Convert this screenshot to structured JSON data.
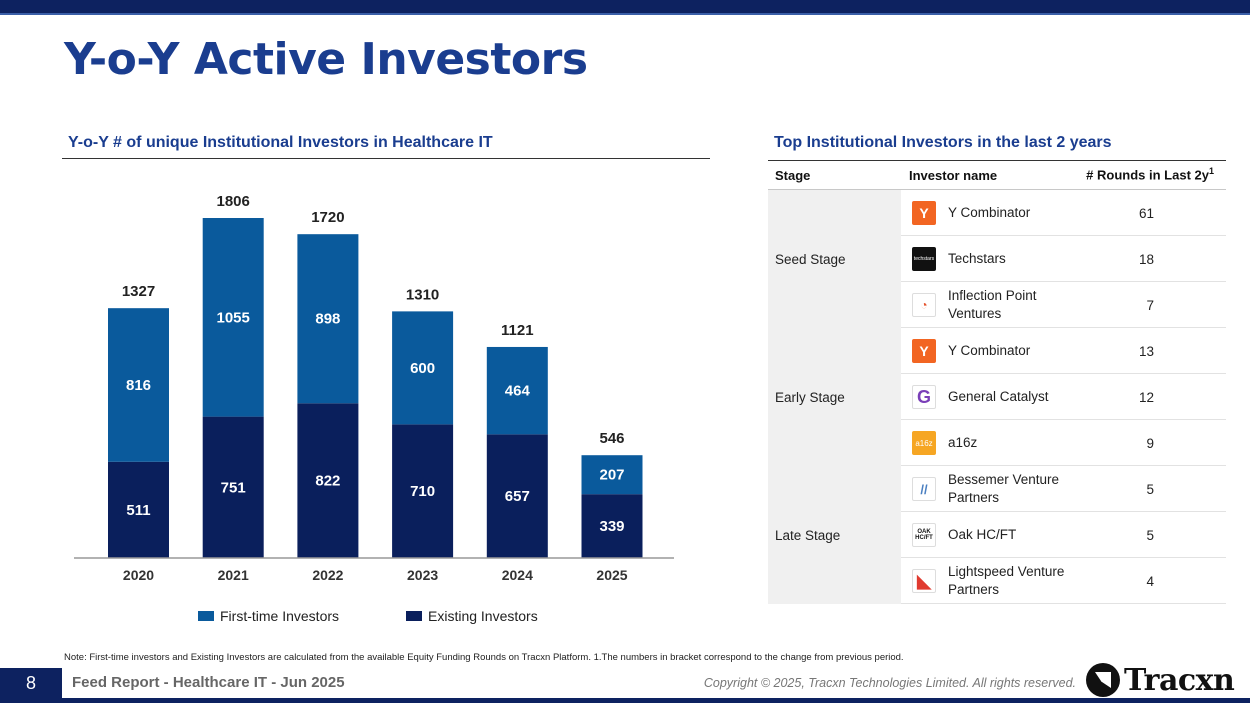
{
  "page": {
    "title": "Y-o-Y Active Investors",
    "left_section_title": "Y-o-Y  # of unique Institutional Investors in Healthcare IT",
    "right_section_title": "Top Institutional Investors in the last 2 years",
    "note": "Note: First-time investors and Existing Investors are calculated from the available Equity Funding Rounds on Tracxn Platform. 1.The numbers in bracket correspond to the change from previous period.",
    "page_number": "8",
    "report_name": "Feed Report - Healthcare IT - Jun 2025",
    "copyright": "Copyright © 2025, Tracxn Technologies Limited. All rights reserved.",
    "brand": "Tracxn"
  },
  "colors": {
    "first_time": "#0a5a9c",
    "existing": "#0a1f5c",
    "title": "#1a3d8f"
  },
  "chart_data": {
    "type": "bar",
    "stacked": true,
    "title": "Y-o-Y  # of unique Institutional Investors in Healthcare IT",
    "categories": [
      "2020",
      "2021",
      "2022",
      "2023",
      "2024",
      "2025"
    ],
    "series": [
      {
        "name": "Existing Investors",
        "values": [
          511,
          751,
          822,
          710,
          657,
          339
        ]
      },
      {
        "name": "First-time Investors",
        "values": [
          816,
          1055,
          898,
          600,
          464,
          207
        ]
      }
    ],
    "totals": [
      1327,
      1806,
      1720,
      1310,
      1121,
      546
    ],
    "legend": [
      "First-time Investors",
      "Existing Investors"
    ],
    "legend_position": "bottom",
    "ylim": [
      0,
      1806
    ],
    "xlabel": "",
    "ylabel": "",
    "grid": false
  },
  "table": {
    "headers": {
      "stage": "Stage",
      "investor": "Investor name",
      "rounds": "# Rounds in Last 2y",
      "rounds_sup": "1"
    },
    "groups": [
      {
        "stage": "Seed Stage",
        "rows": [
          {
            "logo": "Y",
            "logo_icon": "y-combinator-logo-icon",
            "name": "Y Combinator",
            "rounds": "61"
          },
          {
            "logo": "techstars",
            "logo_icon": "techstars-logo-icon",
            "name": "Techstars",
            "rounds": "18"
          },
          {
            "logo": "◔",
            "logo_icon": "inflection-point-logo-icon",
            "name": "Inflection Point Ventures",
            "rounds": "7"
          }
        ]
      },
      {
        "stage": "Early Stage",
        "rows": [
          {
            "logo": "Y",
            "logo_icon": "y-combinator-logo-icon",
            "name": "Y Combinator",
            "rounds": "13"
          },
          {
            "logo": "G",
            "logo_icon": "general-catalyst-logo-icon",
            "name": "General Catalyst",
            "rounds": "12"
          },
          {
            "logo": "a16z",
            "logo_icon": "a16z-logo-icon",
            "name": "a16z",
            "rounds": "9"
          }
        ]
      },
      {
        "stage": "Late Stage",
        "rows": [
          {
            "logo": "//",
            "logo_icon": "bessemer-logo-icon",
            "name": "Bessemer Venture Partners",
            "rounds": "5"
          },
          {
            "logo": "OAK HC/FT",
            "logo_icon": "oak-hcft-logo-icon",
            "name": "Oak HC/FT",
            "rounds": "5"
          },
          {
            "logo": "◣",
            "logo_icon": "lightspeed-logo-icon",
            "name": "Lightspeed Venture Partners",
            "rounds": "4"
          }
        ]
      }
    ]
  }
}
